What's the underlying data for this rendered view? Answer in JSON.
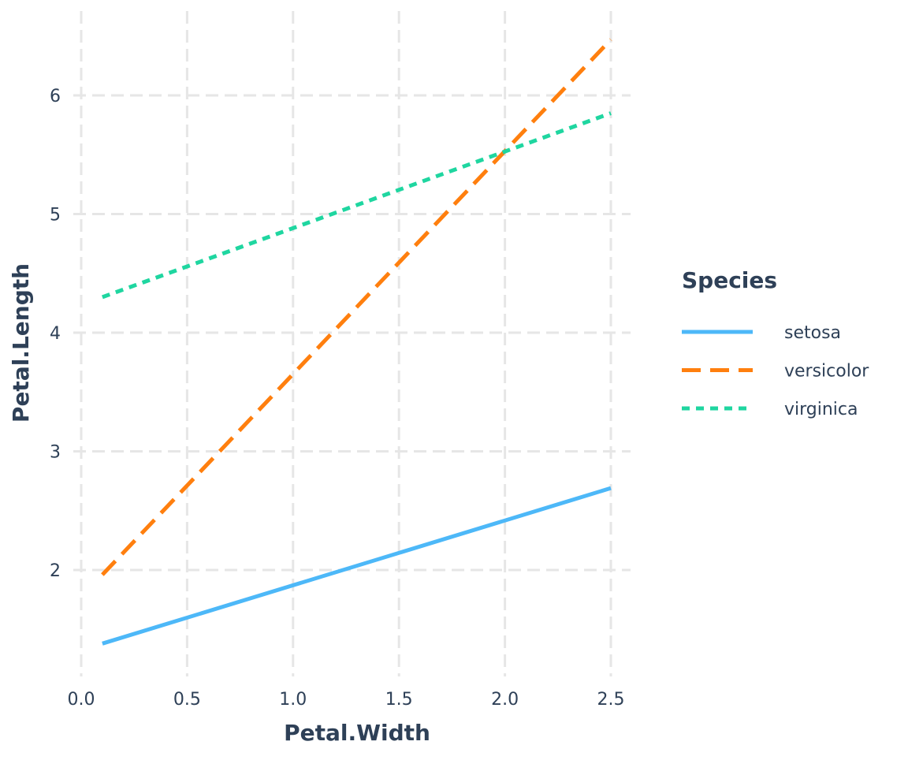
{
  "chart_data": {
    "type": "line",
    "xlabel": "Petal.Width",
    "ylabel": "Petal.Length",
    "xlim": [
      0.0,
      2.5
    ],
    "ylim": [
      1.2,
      6.6
    ],
    "x_ticks": [
      "0.0",
      "0.5",
      "1.0",
      "1.5",
      "2.0",
      "2.5"
    ],
    "x_tick_values": [
      0.0,
      0.5,
      1.0,
      1.5,
      2.0,
      2.5
    ],
    "y_ticks": [
      "2",
      "3",
      "4",
      "5",
      "6"
    ],
    "y_tick_values": [
      2,
      3,
      4,
      5,
      6
    ],
    "grid": true,
    "legend": {
      "title": "Species",
      "placement": "right"
    },
    "series": [
      {
        "name": "setosa",
        "color": "#4db8f8",
        "dash": "solid",
        "x": [
          0.1,
          2.5
        ],
        "y": [
          1.38,
          2.69
        ]
      },
      {
        "name": "versicolor",
        "color": "#ff7f0e",
        "dash": "dashed",
        "x": [
          0.1,
          2.5
        ],
        "y": [
          1.96,
          6.47
        ]
      },
      {
        "name": "virginica",
        "color": "#1fd6a0",
        "dash": "dotted",
        "x": [
          0.1,
          2.5
        ],
        "y": [
          4.3,
          5.85
        ]
      }
    ]
  }
}
